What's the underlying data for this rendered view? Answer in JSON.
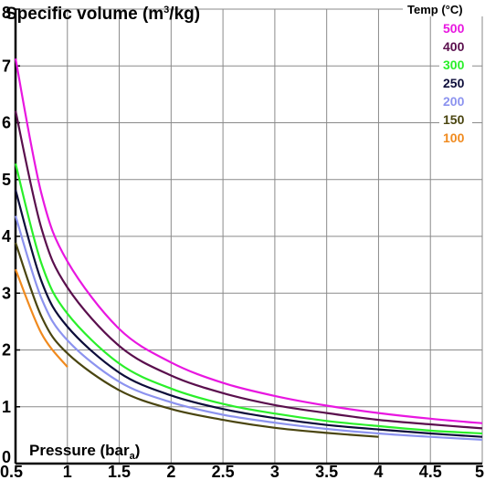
{
  "chart_data": {
    "type": "line",
    "title": "Specific volume (m",
    "title_sup": "3",
    "title_tail": "/kg)",
    "xlabel": "Pressure (bar",
    "xlabel_sub": "a",
    "xlabel_tail": ")",
    "legend_title": "Temp (°C)",
    "xlim": [
      0.5,
      5
    ],
    "ylim": [
      0,
      8
    ],
    "grid": true,
    "legend_position": "top-right",
    "xticks": [
      {
        "value": 0.5,
        "label": "0.5"
      },
      {
        "value": 1,
        "label": "1"
      },
      {
        "value": 1.5,
        "label": "1.5"
      },
      {
        "value": 2,
        "label": "2"
      },
      {
        "value": 2.5,
        "label": "2.5"
      },
      {
        "value": 3,
        "label": "3"
      },
      {
        "value": 3.5,
        "label": "3.5"
      },
      {
        "value": 4,
        "label": "4"
      },
      {
        "value": 4.5,
        "label": "4.5"
      },
      {
        "value": 5,
        "label": "5"
      }
    ],
    "yticks": [
      {
        "value": 0,
        "label": "0"
      },
      {
        "value": 1,
        "label": "1"
      },
      {
        "value": 2,
        "label": "2"
      },
      {
        "value": 3,
        "label": "3"
      },
      {
        "value": 4,
        "label": "4"
      },
      {
        "value": 5,
        "label": "5"
      },
      {
        "value": 6,
        "label": "6"
      },
      {
        "value": 7,
        "label": "7"
      },
      {
        "value": 8,
        "label": "8"
      }
    ],
    "series": [
      {
        "name": "500",
        "color": "#e817e0",
        "x": [
          0.5,
          0.75,
          1,
          1.5,
          2,
          2.5,
          3,
          3.5,
          4,
          4.5,
          5
        ],
        "y": [
          7.13,
          4.75,
          3.56,
          2.37,
          1.78,
          1.42,
          1.19,
          1.02,
          0.89,
          0.79,
          0.71
        ]
      },
      {
        "name": "400",
        "color": "#5a0f4d",
        "x": [
          0.5,
          0.75,
          1,
          1.5,
          2,
          2.5,
          3,
          3.5,
          4,
          4.5,
          5
        ],
        "y": [
          6.21,
          4.14,
          3.1,
          2.07,
          1.55,
          1.24,
          1.03,
          0.89,
          0.77,
          0.69,
          0.62
        ]
      },
      {
        "name": "300",
        "color": "#2aef2a",
        "x": [
          0.5,
          0.75,
          1,
          1.5,
          2,
          2.5,
          3,
          3.5,
          4,
          4.5,
          5
        ],
        "y": [
          5.28,
          3.52,
          2.64,
          1.76,
          1.32,
          1.05,
          0.88,
          0.75,
          0.66,
          0.58,
          0.53
        ]
      },
      {
        "name": "250",
        "color": "#0d0d3a",
        "x": [
          0.5,
          0.75,
          1,
          1.5,
          2,
          2.5,
          3,
          3.5,
          4,
          4.5,
          5
        ],
        "y": [
          4.82,
          3.21,
          2.41,
          1.6,
          1.2,
          0.96,
          0.8,
          0.68,
          0.6,
          0.53,
          0.47
        ]
      },
      {
        "name": "200",
        "color": "#8c93ef",
        "x": [
          0.5,
          0.75,
          1,
          1.5,
          2,
          2.5,
          3,
          3.5,
          4,
          4.5,
          5
        ],
        "y": [
          4.36,
          2.91,
          2.17,
          1.44,
          1.08,
          0.86,
          0.72,
          0.61,
          0.53,
          0.47,
          0.42
        ]
      },
      {
        "name": "150",
        "color": "#4a4510",
        "x": [
          0.5,
          0.75,
          1,
          1.5,
          2,
          2.5,
          3,
          3.5,
          4
        ],
        "y": [
          3.89,
          2.59,
          1.94,
          1.29,
          0.96,
          0.77,
          0.63,
          0.54,
          0.47
        ]
      },
      {
        "name": "100",
        "color": "#f08a1e",
        "x": [
          0.5,
          0.75,
          1
        ],
        "y": [
          3.42,
          2.29,
          1.7
        ]
      }
    ]
  }
}
